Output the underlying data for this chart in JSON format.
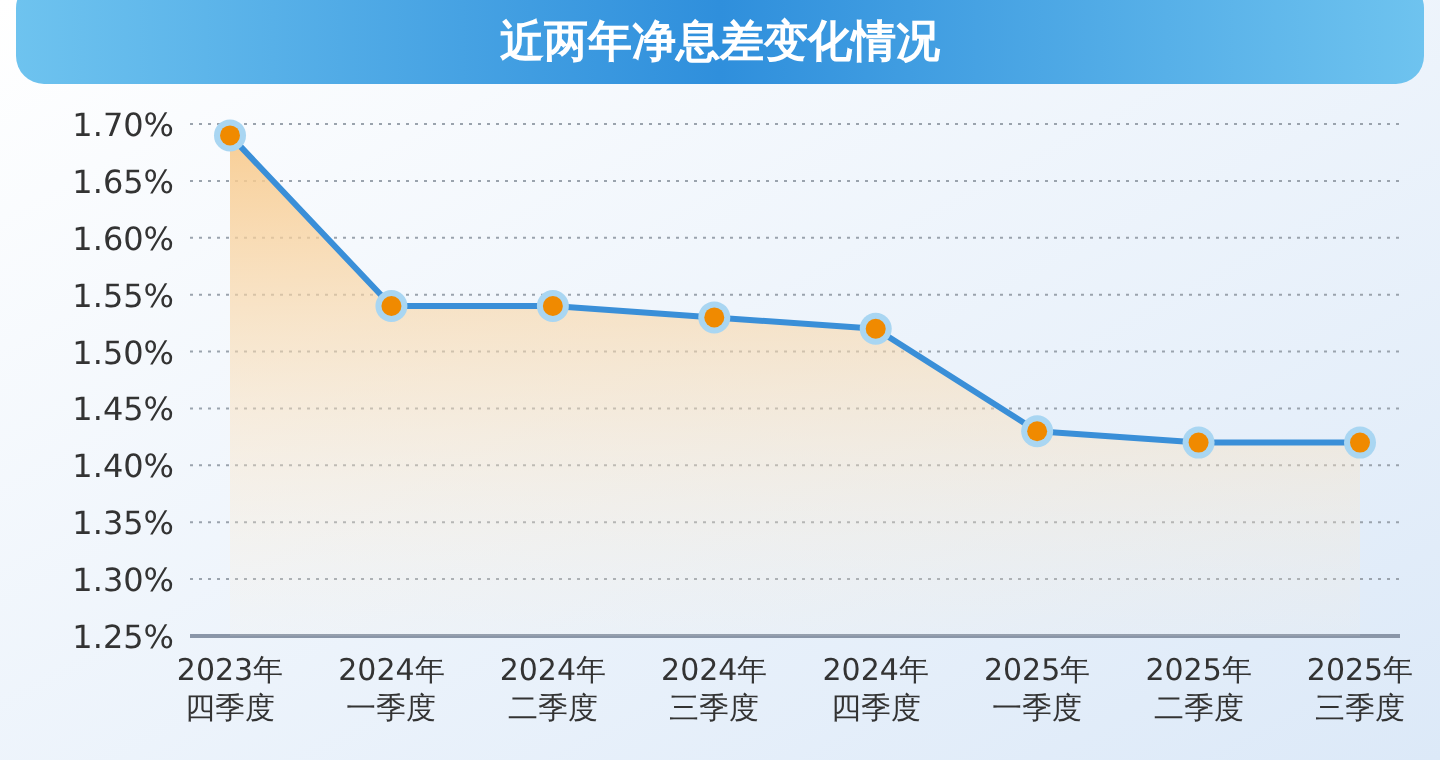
{
  "chart_data": {
    "type": "area",
    "title": "近两年净息差变化情况",
    "categories": [
      "2023年四季度",
      "2024年一季度",
      "2024年二季度",
      "2024年三季度",
      "2024年四季度",
      "2025年一季度",
      "2025年二季度",
      "2025年三季度"
    ],
    "series": [
      {
        "color": "#3a8fd8",
        "values": [
          1.69,
          1.54,
          1.54,
          1.53,
          1.52,
          1.43,
          1.42,
          1.42
        ]
      }
    ],
    "ylim": [
      1.25,
      1.7
    ],
    "yticks": [
      {
        "value": 1.25,
        "label": "1.25%"
      },
      {
        "value": 1.3,
        "label": "1.30%"
      },
      {
        "value": 1.35,
        "label": "1.35%"
      },
      {
        "value": 1.4,
        "label": "1.40%"
      },
      {
        "value": 1.45,
        "label": "1.45%"
      },
      {
        "value": 1.5,
        "label": "1.50%"
      },
      {
        "value": 1.55,
        "label": "1.55%"
      },
      {
        "value": 1.6,
        "label": "1.60%"
      },
      {
        "value": 1.65,
        "label": "1.65%"
      },
      {
        "value": 1.7,
        "label": "1.70%"
      }
    ],
    "grid": "y",
    "marker": "circle"
  }
}
